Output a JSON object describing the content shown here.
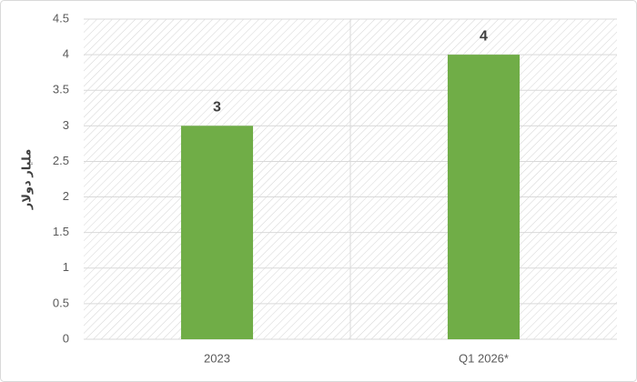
{
  "chart_data": {
    "type": "bar",
    "y_label": "مليار دولار",
    "categories": [
      "2023",
      "Q1 2026*"
    ],
    "values": [
      3,
      4
    ],
    "color": "#70ad47",
    "ylim": [
      0,
      4.5
    ],
    "yticks": [
      0,
      0.5,
      1,
      1.5,
      2,
      2.5,
      3,
      3.5,
      4,
      4.5
    ],
    "grid": true
  }
}
